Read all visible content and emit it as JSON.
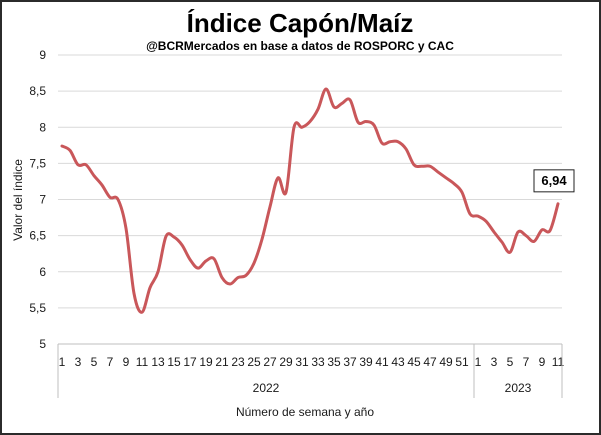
{
  "chart_data": {
    "type": "line",
    "title": "Índice Capón/Maíz",
    "subtitle": "@BCRMercados en base a datos de ROSPORC y CAC",
    "ylabel": "Valor del índice",
    "xlabel": "Número de semana y año",
    "ylim": [
      5,
      9
    ],
    "y_ticks": [
      {
        "value": 5,
        "label": "5"
      },
      {
        "value": 5.5,
        "label": "5,5"
      },
      {
        "value": 6,
        "label": "6"
      },
      {
        "value": 6.5,
        "label": "6,5"
      },
      {
        "value": 7,
        "label": "7"
      },
      {
        "value": 7.5,
        "label": "7,5"
      },
      {
        "value": 8,
        "label": "8"
      },
      {
        "value": 8.5,
        "label": "8,5"
      },
      {
        "value": 9,
        "label": "9"
      }
    ],
    "grid": true,
    "line_color": "#c9575a",
    "groups": [
      {
        "label": "2022",
        "weeks": [
          "1",
          "2",
          "3",
          "4",
          "5",
          "6",
          "7",
          "8",
          "9",
          "10",
          "11",
          "12",
          "13",
          "14",
          "15",
          "16",
          "17",
          "18",
          "19",
          "20",
          "21",
          "22",
          "23",
          "24",
          "25",
          "26",
          "27",
          "28",
          "29",
          "30",
          "31",
          "32",
          "33",
          "34",
          "35",
          "36",
          "37",
          "38",
          "39",
          "40",
          "41",
          "42",
          "43",
          "44",
          "45",
          "46",
          "47",
          "48",
          "49",
          "50",
          "51",
          "52"
        ]
      },
      {
        "label": "2023",
        "weeks": [
          "1",
          "2",
          "3",
          "4",
          "5",
          "6",
          "7",
          "8",
          "9",
          "10",
          "11"
        ]
      }
    ],
    "series": [
      {
        "values": [
          7.74,
          7.68,
          7.48,
          7.48,
          7.33,
          7.2,
          7.03,
          7.0,
          6.6,
          5.7,
          5.44,
          5.78,
          6.0,
          6.49,
          6.48,
          6.37,
          6.17,
          6.05,
          6.15,
          6.18,
          5.92,
          5.83,
          5.92,
          5.95,
          6.12,
          6.45,
          6.9,
          7.3,
          7.1,
          8.0,
          8.0,
          8.08,
          8.25,
          8.53,
          8.28,
          8.33,
          8.38,
          8.07,
          8.08,
          8.03,
          7.78,
          7.8,
          7.8,
          7.7,
          7.48,
          7.46,
          7.46,
          7.38,
          7.3,
          7.22,
          7.1,
          6.8,
          6.77,
          6.7,
          6.55,
          6.41,
          6.27,
          6.55,
          6.5,
          6.42,
          6.58,
          6.57,
          6.94
        ]
      }
    ],
    "annotations": [
      {
        "text": "6,94",
        "series_index": 0,
        "point_index": 62
      }
    ]
  }
}
